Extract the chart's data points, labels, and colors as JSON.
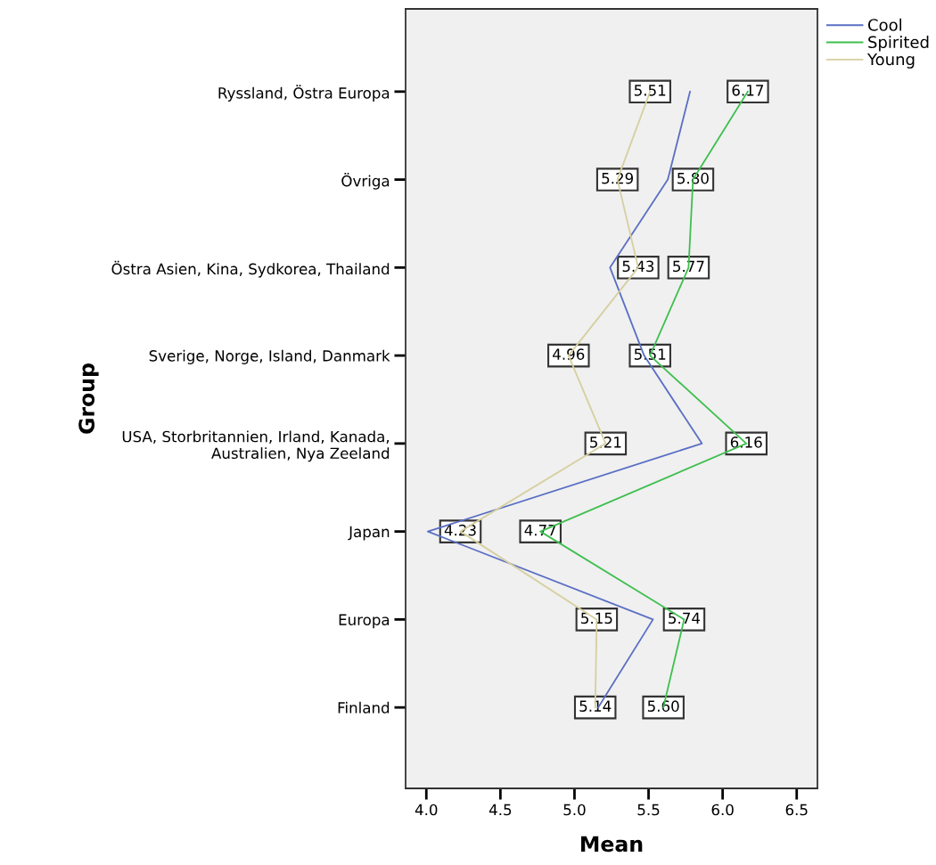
{
  "chart_data": {
    "type": "line",
    "orientation": "horizontal",
    "xlabel": "Mean",
    "ylabel": "Group",
    "categories": [
      "Ryssland, Östra Europa",
      "Övriga",
      "Östra Asien, Kina, Sydkorea, Thailand",
      "Sverige, Norge, Island, Danmark",
      "USA, Storbritannien, Irland, Kanada,\nAustralien, Nya Zeeland",
      "Japan",
      "Europa",
      "Finland"
    ],
    "series": [
      {
        "name": "Cool",
        "color": "#5a6fc4",
        "values": [
          5.78,
          5.63,
          5.24,
          5.47,
          5.86,
          4.01,
          5.53,
          5.16
        ],
        "value_labels": [
          null,
          null,
          null,
          null,
          null,
          null,
          null,
          null
        ]
      },
      {
        "name": "Spirited",
        "color": "#3fbf4f",
        "values": [
          6.17,
          5.8,
          5.77,
          5.51,
          6.16,
          4.77,
          5.74,
          5.6
        ],
        "value_labels": [
          "6.17",
          "5.80",
          "5.77",
          "5.51",
          "6.16",
          "4.77",
          "5.74",
          "5.60"
        ]
      },
      {
        "name": "Young",
        "color": "#d6cfa0",
        "values": [
          5.51,
          5.29,
          5.43,
          4.96,
          5.21,
          4.23,
          5.15,
          5.14
        ],
        "value_labels": [
          "5.51",
          "5.29",
          "5.43",
          "4.96",
          "5.21",
          "4.23",
          "5.15",
          "5.14"
        ]
      }
    ],
    "xlim": [
      3.86,
      6.64
    ],
    "xticks": [
      {
        "value": 4,
        "label": "4.0"
      },
      {
        "value": 4.5,
        "label": "4.5"
      },
      {
        "value": 5,
        "label": "5.0"
      },
      {
        "value": 5.5,
        "label": "5.5"
      },
      {
        "value": 6,
        "label": "6.0"
      },
      {
        "value": 6.5,
        "label": "6.5"
      }
    ],
    "grid": false,
    "legend": "top right",
    "marker": "none",
    "line_style": "solid"
  }
}
